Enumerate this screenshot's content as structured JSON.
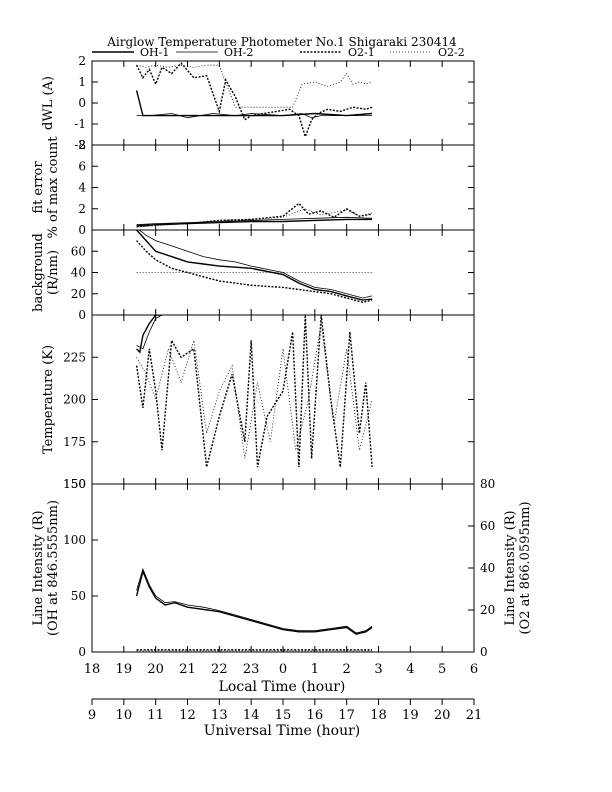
{
  "title": "Airglow Temperature Photometer No.1  Shigaraki  230414",
  "legend": [
    {
      "name": "OH-1",
      "dash": "solid",
      "width": 1.4
    },
    {
      "name": "OH-2",
      "dash": "solid",
      "width": 0.8
    },
    {
      "name": "O2-1",
      "dash": "dense-dot",
      "width": 1.4
    },
    {
      "name": "O2-2",
      "dash": "dot",
      "width": 0.8
    }
  ],
  "colors": {
    "ink": "#000000",
    "background": "#ffffff"
  },
  "chart_data": [
    {
      "type": "line",
      "ylabel": "dWL (A)",
      "ylim": [
        -2,
        2
      ],
      "yticks": [
        "-2",
        "-1",
        "0",
        "1",
        "2"
      ],
      "series": [
        {
          "name": "OH-1",
          "x": [
            19.4,
            19.6,
            20,
            21,
            22,
            23,
            0,
            1,
            2,
            2.8
          ],
          "y": [
            0.6,
            -0.6,
            -0.6,
            -0.6,
            -0.6,
            -0.6,
            -0.6,
            -0.5,
            -0.6,
            -0.5
          ]
        },
        {
          "name": "OH-2",
          "x": [
            19.4,
            19.8,
            20.5,
            21,
            21.8,
            22.5,
            23,
            0,
            0.6,
            0.9,
            1.2,
            1.7,
            2.2,
            2.8
          ],
          "y": [
            -0.6,
            -0.6,
            -0.5,
            -0.7,
            -0.5,
            -0.6,
            -0.5,
            -0.6,
            -0.5,
            -0.7,
            -0.6,
            -0.6,
            -0.6,
            -0.6
          ]
        },
        {
          "name": "O2-1",
          "x": [
            19.4,
            19.6,
            19.8,
            20,
            20.2,
            20.5,
            20.8,
            21.2,
            21.6,
            22,
            22.2,
            22.5,
            22.8,
            23,
            0.2,
            0.5,
            0.7,
            0.9,
            1.1,
            1.4,
            1.8,
            2.2,
            2.6,
            2.8
          ],
          "y": [
            1.8,
            1.2,
            1.6,
            0.9,
            1.7,
            1.4,
            1.9,
            1.2,
            1.3,
            -0.4,
            1.1,
            0.3,
            -0.8,
            -0.6,
            -0.3,
            -0.6,
            -1.6,
            -0.8,
            -0.5,
            -0.3,
            -0.4,
            -0.2,
            -0.3,
            -0.2
          ]
        },
        {
          "name": "O2-2",
          "x": [
            19.4,
            19.7,
            20,
            20.4,
            20.8,
            21.2,
            21.6,
            22,
            22.5,
            23,
            0.3,
            0.6,
            1,
            1.4,
            1.8,
            2,
            2.2,
            2.4,
            2.6,
            2.8
          ],
          "y": [
            1.8,
            1.7,
            1.8,
            1.7,
            1.8,
            1.7,
            1.8,
            1.8,
            -0.2,
            -0.2,
            -0.2,
            0.9,
            1.0,
            0.8,
            1.0,
            1.4,
            0.9,
            1.0,
            0.9,
            1.0
          ]
        }
      ]
    },
    {
      "type": "line",
      "ylabel": "fit error\n% of max count",
      "ylim": [
        0,
        8
      ],
      "yticks": [
        "0",
        "2",
        "4",
        "6",
        "8"
      ],
      "series": [
        {
          "name": "OH-1",
          "x": [
            19.4,
            20,
            21,
            22,
            23,
            0,
            1,
            2,
            2.8
          ],
          "y": [
            0.4,
            0.5,
            0.6,
            0.7,
            0.8,
            0.8,
            0.9,
            1.0,
            1.0
          ]
        },
        {
          "name": "OH-2",
          "x": [
            19.4,
            20,
            21,
            22,
            23,
            0,
            1,
            2,
            2.8
          ],
          "y": [
            0.5,
            0.6,
            0.7,
            0.8,
            0.9,
            1.0,
            1.1,
            1.2,
            1.1
          ]
        },
        {
          "name": "O2-1",
          "x": [
            19.4,
            20,
            21,
            22,
            23,
            0,
            0.5,
            0.8,
            1.2,
            1.6,
            2,
            2.4,
            2.8
          ],
          "y": [
            0.3,
            0.5,
            0.6,
            0.9,
            1.0,
            1.3,
            2.5,
            1.5,
            1.8,
            1.2,
            2.0,
            1.3,
            1.5
          ]
        },
        {
          "name": "O2-2",
          "x": [
            19.4,
            20,
            21,
            22,
            23,
            0,
            0.7,
            1.2,
            2,
            2.4,
            2.8
          ],
          "y": [
            0.3,
            0.4,
            0.6,
            0.9,
            1.0,
            1.2,
            2.0,
            1.4,
            1.9,
            1.3,
            1.6
          ]
        }
      ]
    },
    {
      "type": "line",
      "ylabel": "background\n(R/nm)",
      "ylim": [
        0,
        80
      ],
      "yticks": [
        "0",
        "20",
        "40",
        "60"
      ],
      "series": [
        {
          "name": "OH-1",
          "x": [
            19.4,
            19.7,
            20,
            20.5,
            21,
            21.5,
            22,
            22.5,
            23,
            0,
            0.5,
            1,
            1.5,
            2,
            2.5,
            2.8
          ],
          "y": [
            80,
            70,
            60,
            55,
            50,
            48,
            46,
            45,
            44,
            38,
            30,
            24,
            22,
            18,
            14,
            15
          ]
        },
        {
          "name": "OH-2",
          "x": [
            19.4,
            19.7,
            20,
            20.5,
            21,
            21.5,
            22,
            22.5,
            23,
            0,
            0.5,
            1,
            1.5,
            2,
            2.5,
            2.8
          ],
          "y": [
            82,
            75,
            70,
            65,
            60,
            55,
            52,
            50,
            46,
            40,
            32,
            26,
            24,
            20,
            16,
            18
          ]
        },
        {
          "name": "O2-1",
          "x": [
            19.4,
            19.7,
            20,
            20.5,
            21,
            21.5,
            22,
            22.5,
            23,
            0,
            0.5,
            1,
            1.5,
            2,
            2.5,
            2.8
          ],
          "y": [
            70,
            60,
            52,
            44,
            40,
            36,
            32,
            30,
            28,
            26,
            24,
            22,
            20,
            16,
            12,
            14
          ]
        },
        {
          "name": "O2-2",
          "x": [
            19.4,
            19.7,
            20,
            20.5,
            21,
            21.5,
            22,
            22.5,
            23,
            0,
            0.5,
            1,
            1.5,
            2,
            2.5,
            2.8
          ],
          "y": [
            40,
            40,
            40,
            40,
            40,
            40,
            40,
            40,
            40,
            40,
            40,
            40,
            40,
            40,
            40,
            40
          ]
        }
      ]
    },
    {
      "type": "line",
      "ylabel": "Temperature (K)",
      "ylim": [
        150,
        250
      ],
      "yticks": [
        "150",
        "175",
        "200",
        "225"
      ],
      "series": [
        {
          "name": "OH-1",
          "x": [
            19.4,
            19.5,
            19.6,
            19.8,
            20,
            20.2
          ],
          "y": [
            230,
            228,
            238,
            245,
            250,
            250
          ]
        },
        {
          "name": "OH-2",
          "x": [
            19.4,
            19.6,
            19.8,
            20,
            20.2
          ],
          "y": [
            232,
            230,
            240,
            248,
            250
          ]
        },
        {
          "name": "O2-1",
          "x": [
            19.4,
            19.6,
            19.8,
            20,
            20.2,
            20.5,
            20.8,
            21.2,
            21.6,
            22,
            22.4,
            22.8,
            23,
            23.2,
            23.5,
            0,
            0.3,
            0.5,
            0.7,
            0.9,
            1.2,
            1.5,
            1.8,
            2.1,
            2.4,
            2.6,
            2.8
          ],
          "y": [
            220,
            195,
            230,
            205,
            170,
            235,
            225,
            230,
            160,
            190,
            215,
            175,
            235,
            160,
            190,
            205,
            240,
            160,
            250,
            165,
            250,
            200,
            160,
            240,
            180,
            210,
            160
          ]
        },
        {
          "name": "O2-2",
          "x": [
            19.4,
            19.7,
            20,
            20.4,
            20.8,
            21.2,
            21.6,
            22,
            22.4,
            22.8,
            23.2,
            23.6,
            0,
            0.4,
            0.8,
            1.2,
            1.6,
            2,
            2.4,
            2.8
          ],
          "y": [
            225,
            215,
            200,
            230,
            210,
            235,
            180,
            205,
            220,
            165,
            210,
            175,
            230,
            170,
            200,
            245,
            185,
            230,
            170,
            200
          ]
        }
      ]
    },
    {
      "type": "line",
      "ylabel": "Line Intensity (R)\n(OH at 846.5555nm)",
      "ylabel_right": "Line Intensity (R)\n(O2 at 866.0595nm)",
      "ylim": [
        0,
        150
      ],
      "ylim_right": [
        0,
        80
      ],
      "yticks": [
        "0",
        "50",
        "100",
        "150"
      ],
      "yticks_right": [
        "0",
        "20",
        "40",
        "60",
        "80"
      ],
      "series": [
        {
          "name": "OH-1",
          "x": [
            19.4,
            19.6,
            19.8,
            20,
            20.3,
            20.6,
            21,
            21.5,
            22,
            22.5,
            23,
            23.5,
            0,
            0.5,
            1,
            1.5,
            2,
            2.3,
            2.6,
            2.8
          ],
          "y": [
            50,
            72,
            58,
            48,
            42,
            44,
            40,
            38,
            36,
            32,
            28,
            24,
            20,
            18,
            18,
            20,
            22,
            16,
            18,
            22
          ]
        },
        {
          "name": "OH-2",
          "x": [
            19.4,
            19.6,
            19.8,
            20,
            20.3,
            20.6,
            21,
            21.5,
            22,
            22.5,
            23,
            23.5,
            0,
            0.5,
            1,
            1.5,
            2,
            2.3,
            2.6,
            2.8
          ],
          "y": [
            55,
            74,
            60,
            50,
            44,
            45,
            42,
            40,
            37,
            33,
            29,
            25,
            21,
            19,
            19,
            21,
            23,
            17,
            19,
            23
          ]
        },
        {
          "name": "O2-1",
          "x": [
            19.4,
            20,
            21,
            22,
            23,
            0,
            1,
            2,
            2.8
          ],
          "y": [
            2,
            2,
            2,
            2,
            2,
            2,
            2,
            2,
            2
          ]
        },
        {
          "name": "O2-2",
          "x": [
            19.4,
            20,
            21,
            22,
            23,
            0,
            1,
            2,
            2.8
          ],
          "y": [
            1,
            1,
            1,
            1,
            1,
            1,
            1,
            1,
            1
          ]
        }
      ]
    }
  ],
  "xaxis_local": {
    "label": "Local Time (hour)",
    "ticks": [
      "18",
      "19",
      "20",
      "21",
      "22",
      "23",
      "0",
      "1",
      "2",
      "3",
      "4",
      "5",
      "6"
    ]
  },
  "xaxis_ut": {
    "label": "Universal Time (hour)",
    "ticks": [
      "9",
      "10",
      "11",
      "12",
      "13",
      "14",
      "15",
      "16",
      "17",
      "18",
      "19",
      "20",
      "21"
    ]
  }
}
